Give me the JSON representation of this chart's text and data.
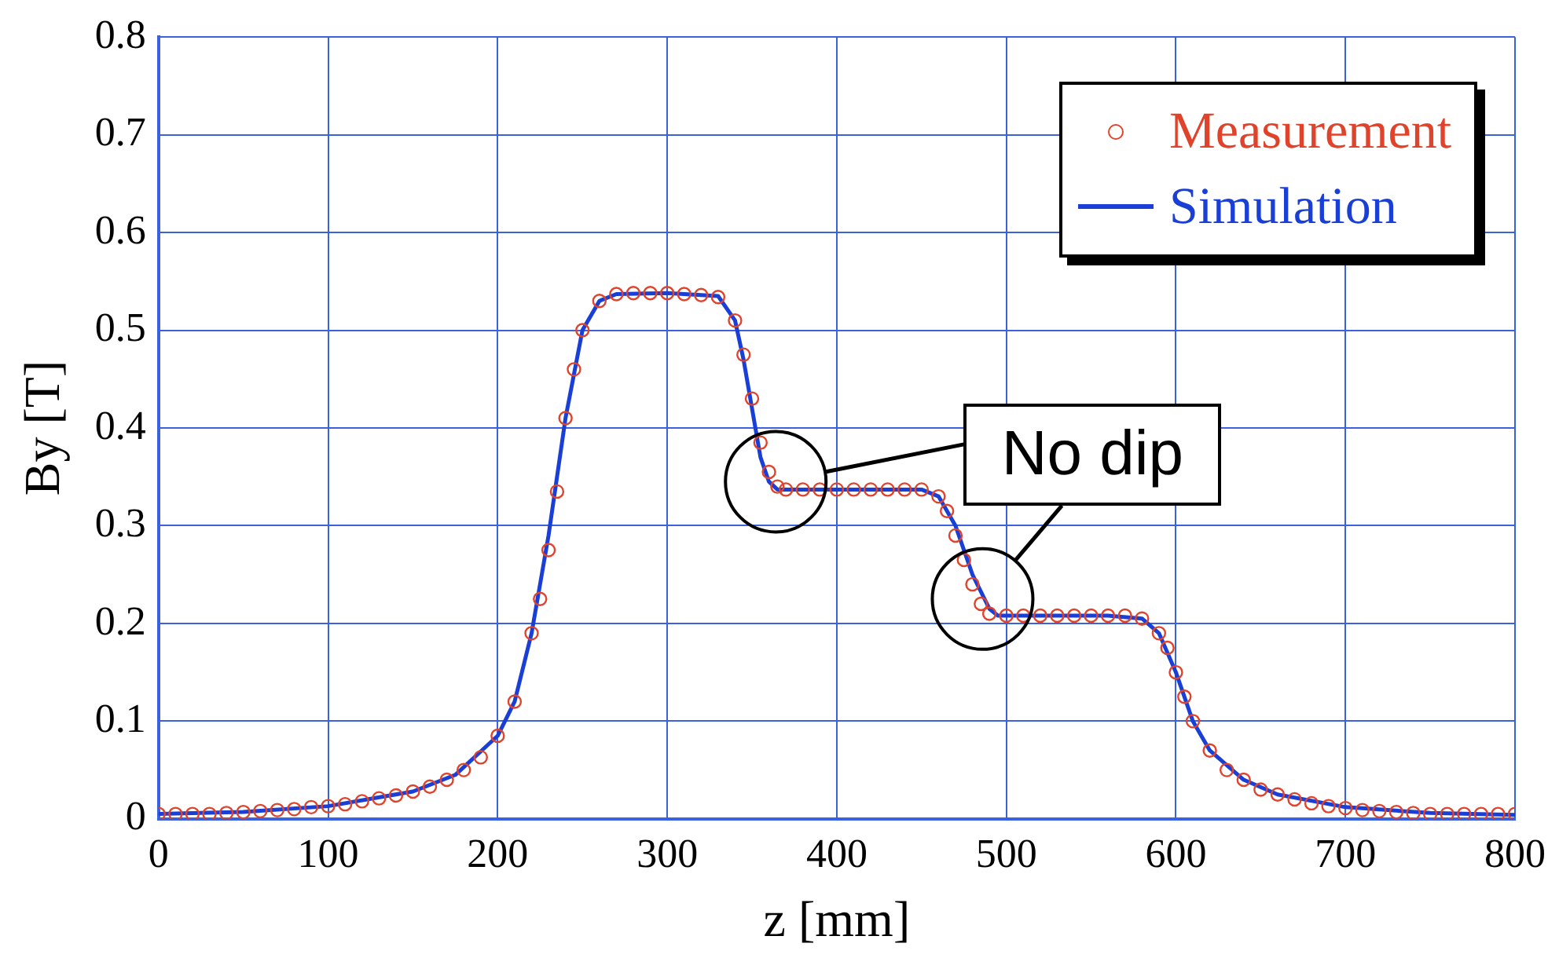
{
  "chart_data": {
    "type": "line",
    "xlabel": "z [mm]",
    "ylabel": "By [T]",
    "xlim": [
      0,
      800
    ],
    "xticks": [
      0,
      100,
      200,
      300,
      400,
      500,
      600,
      700,
      800
    ],
    "ylim": [
      0,
      0.8
    ],
    "yticks": [
      0,
      0.1,
      0.2,
      0.3,
      0.4,
      0.5,
      0.6,
      0.7,
      0.8
    ],
    "grid": true,
    "legend": "top right",
    "annotations": [
      "No dip"
    ],
    "series": [
      {
        "name": "Measurement",
        "type": "scatter",
        "marker": "circle",
        "color": "#e0432c",
        "x": [
          0,
          10,
          20,
          30,
          40,
          50,
          60,
          70,
          80,
          90,
          100,
          110,
          120,
          130,
          140,
          150,
          160,
          170,
          180,
          190,
          200,
          210,
          220,
          225,
          230,
          235,
          240,
          245,
          250,
          260,
          270,
          280,
          290,
          300,
          310,
          320,
          330,
          340,
          345,
          350,
          355,
          360,
          365,
          370,
          380,
          390,
          400,
          410,
          420,
          430,
          440,
          450,
          460,
          465,
          470,
          475,
          480,
          485,
          490,
          500,
          510,
          520,
          530,
          540,
          550,
          560,
          570,
          580,
          590,
          595,
          600,
          605,
          610,
          620,
          630,
          640,
          650,
          660,
          670,
          680,
          690,
          700,
          710,
          720,
          730,
          740,
          750,
          760,
          770,
          780,
          790,
          800
        ],
        "values": [
          0.005,
          0.005,
          0.005,
          0.005,
          0.006,
          0.007,
          0.008,
          0.009,
          0.01,
          0.012,
          0.013,
          0.015,
          0.018,
          0.021,
          0.024,
          0.028,
          0.033,
          0.04,
          0.05,
          0.063,
          0.085,
          0.12,
          0.19,
          0.225,
          0.275,
          0.335,
          0.41,
          0.46,
          0.5,
          0.53,
          0.537,
          0.538,
          0.538,
          0.538,
          0.537,
          0.536,
          0.534,
          0.51,
          0.475,
          0.43,
          0.385,
          0.355,
          0.34,
          0.337,
          0.337,
          0.337,
          0.337,
          0.337,
          0.337,
          0.337,
          0.337,
          0.337,
          0.33,
          0.315,
          0.29,
          0.265,
          0.24,
          0.22,
          0.21,
          0.208,
          0.208,
          0.208,
          0.208,
          0.208,
          0.208,
          0.208,
          0.208,
          0.205,
          0.19,
          0.175,
          0.15,
          0.125,
          0.1,
          0.07,
          0.05,
          0.04,
          0.03,
          0.025,
          0.02,
          0.016,
          0.013,
          0.011,
          0.009,
          0.008,
          0.007,
          0.006,
          0.005,
          0.005,
          0.005,
          0.005,
          0.005,
          0.005
        ]
      },
      {
        "name": "Simulation",
        "type": "line",
        "marker": "none",
        "line_style": "solid",
        "color": "#1a3fd6",
        "x": [
          0,
          50,
          100,
          150,
          175,
          200,
          210,
          220,
          230,
          240,
          250,
          260,
          270,
          300,
          330,
          340,
          345,
          350,
          355,
          360,
          365,
          380,
          450,
          460,
          470,
          480,
          490,
          495,
          560,
          580,
          590,
          600,
          610,
          620,
          640,
          660,
          700,
          750,
          800
        ],
        "values": [
          0.005,
          0.007,
          0.013,
          0.028,
          0.045,
          0.085,
          0.12,
          0.19,
          0.29,
          0.41,
          0.5,
          0.53,
          0.537,
          0.538,
          0.535,
          0.51,
          0.47,
          0.42,
          0.37,
          0.345,
          0.337,
          0.337,
          0.337,
          0.33,
          0.3,
          0.25,
          0.215,
          0.208,
          0.208,
          0.205,
          0.19,
          0.15,
          0.1,
          0.07,
          0.04,
          0.025,
          0.012,
          0.006,
          0.004
        ]
      }
    ]
  }
}
